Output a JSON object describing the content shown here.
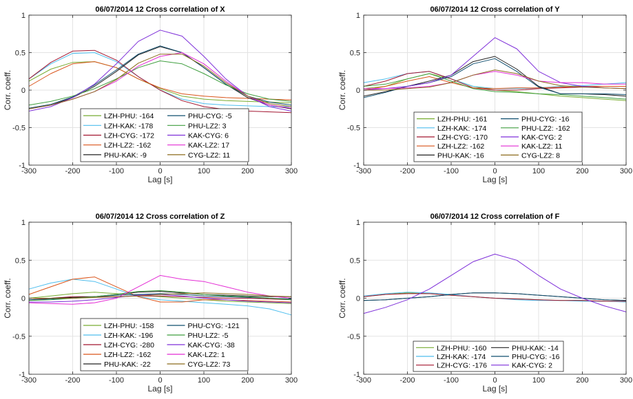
{
  "chart_data": [
    {
      "type": "line",
      "title": "06/07/2014 12 Cross correlation of X",
      "xlabel": "Lag [s]",
      "ylabel": "Corr. coeff.",
      "xlim": [
        -300,
        300
      ],
      "ylim": [
        -1,
        1
      ],
      "xticks": [
        "-300",
        "-200",
        "-100",
        "0",
        "100",
        "200",
        "300"
      ],
      "yticks": [
        "-1",
        "-0.5",
        "0",
        "0.5",
        "1"
      ],
      "grid": true,
      "legend_placement": "bottom-center",
      "legend_columns": 2,
      "x": [
        -300,
        -250,
        -200,
        -150,
        -100,
        -50,
        0,
        50,
        100,
        150,
        200,
        250,
        300
      ],
      "series": [
        {
          "name": "LZH-PHU: -164",
          "color": "#77AC30",
          "values": [
            0.12,
            0.28,
            0.37,
            0.38,
            0.3,
            0.15,
            0.02,
            -0.08,
            -0.12,
            -0.14,
            -0.15,
            -0.16,
            -0.17
          ]
        },
        {
          "name": "LZH-KAK: -178",
          "color": "#4DBEEE",
          "values": [
            0.15,
            0.35,
            0.49,
            0.5,
            0.38,
            0.18,
            0.0,
            -0.12,
            -0.18,
            -0.2,
            -0.21,
            -0.22,
            -0.22
          ]
        },
        {
          "name": "LZH-CYG: -172",
          "color": "#A2142F",
          "values": [
            0.15,
            0.37,
            0.52,
            0.53,
            0.4,
            0.18,
            0.0,
            -0.14,
            -0.22,
            -0.26,
            -0.28,
            -0.29,
            -0.3
          ]
        },
        {
          "name": "LZH-LZ2: -162",
          "color": "#D95319",
          "values": [
            0.05,
            0.22,
            0.35,
            0.38,
            0.3,
            0.15,
            0.03,
            -0.05,
            -0.08,
            -0.1,
            -0.11,
            -0.12,
            -0.13
          ]
        },
        {
          "name": "PHU-KAK: -9",
          "color": "#222222",
          "values": [
            -0.25,
            -0.2,
            -0.1,
            0.05,
            0.25,
            0.47,
            0.58,
            0.5,
            0.3,
            0.08,
            -0.1,
            -0.2,
            -0.25
          ]
        },
        {
          "name": "PHU-CYG: -5",
          "color": "#0E4D6E",
          "values": [
            -0.24,
            -0.19,
            -0.09,
            0.07,
            0.27,
            0.48,
            0.59,
            0.5,
            0.3,
            0.08,
            -0.08,
            -0.16,
            -0.2
          ]
        },
        {
          "name": "PHU-LZ2: 3",
          "color": "#3E9E3E",
          "values": [
            -0.2,
            -0.15,
            -0.08,
            0.02,
            0.15,
            0.3,
            0.39,
            0.35,
            0.22,
            0.07,
            -0.05,
            -0.12,
            -0.15
          ]
        },
        {
          "name": "KAK-CYG: 6",
          "color": "#7E2FD9",
          "values": [
            -0.28,
            -0.22,
            -0.1,
            0.08,
            0.35,
            0.65,
            0.8,
            0.72,
            0.45,
            0.15,
            -0.08,
            -0.22,
            -0.28
          ]
        },
        {
          "name": "KAK-LZ2: 17",
          "color": "#E32BD4",
          "values": [
            -0.25,
            -0.2,
            -0.12,
            -0.02,
            0.12,
            0.32,
            0.45,
            0.5,
            0.35,
            0.12,
            -0.08,
            -0.2,
            -0.24
          ]
        },
        {
          "name": "CYG-LZ2: 11",
          "color": "#8B6A1A",
          "values": [
            -0.25,
            -0.2,
            -0.12,
            -0.02,
            0.14,
            0.36,
            0.48,
            0.48,
            0.32,
            0.1,
            -0.08,
            -0.18,
            -0.22
          ]
        }
      ]
    },
    {
      "type": "line",
      "title": "06/07/2014 12 Cross correlation of Y",
      "xlabel": "Lag [s]",
      "ylabel": "Corr. coeff.",
      "xlim": [
        -300,
        300
      ],
      "ylim": [
        -1,
        1
      ],
      "xticks": [
        "-300",
        "-200",
        "-100",
        "0",
        "100",
        "200",
        "300"
      ],
      "yticks": [
        "-1",
        "-0.5",
        "0",
        "0.5",
        "1"
      ],
      "grid": true,
      "legend_placement": "bottom-center",
      "legend_columns": 2,
      "x": [
        -300,
        -250,
        -200,
        -150,
        -100,
        -50,
        0,
        50,
        100,
        150,
        200,
        250,
        300
      ],
      "series": [
        {
          "name": "LZH-PHU: -161",
          "color": "#77AC30",
          "values": [
            0.02,
            0.05,
            0.15,
            0.22,
            0.15,
            0.05,
            0.0,
            -0.02,
            -0.05,
            -0.08,
            -0.1,
            -0.12,
            -0.14
          ]
        },
        {
          "name": "LZH-KAK: -174",
          "color": "#4DBEEE",
          "values": [
            0.1,
            0.15,
            0.22,
            0.25,
            0.15,
            0.05,
            0.02,
            0.02,
            0.03,
            0.05,
            0.06,
            0.08,
            0.1
          ]
        },
        {
          "name": "LZH-CYG: -170",
          "color": "#A2142F",
          "values": [
            0.05,
            0.12,
            0.22,
            0.25,
            0.15,
            0.03,
            0.0,
            0.0,
            0.02,
            0.03,
            0.04,
            0.05,
            0.05
          ]
        },
        {
          "name": "LZH-LZ2: -162",
          "color": "#D95319",
          "values": [
            0.0,
            0.05,
            0.12,
            0.18,
            0.1,
            0.03,
            0.02,
            0.03,
            0.03,
            0.04,
            0.05,
            0.05,
            0.05
          ]
        },
        {
          "name": "PHU-KAK: -16",
          "color": "#222222",
          "values": [
            -0.08,
            -0.02,
            0.05,
            0.12,
            0.2,
            0.38,
            0.45,
            0.28,
            0.05,
            -0.05,
            -0.05,
            -0.06,
            -0.08
          ]
        },
        {
          "name": "PHU-CYG: -16",
          "color": "#0E4D6E",
          "values": [
            -0.1,
            -0.03,
            0.05,
            0.1,
            0.18,
            0.35,
            0.42,
            0.25,
            0.04,
            -0.05,
            -0.05,
            -0.05,
            -0.06
          ]
        },
        {
          "name": "PHU-LZ2: -162",
          "color": "#3E9E3E",
          "values": [
            0.05,
            0.08,
            0.15,
            0.22,
            0.12,
            0.02,
            -0.02,
            -0.03,
            -0.05,
            -0.06,
            -0.08,
            -0.1,
            -0.12
          ]
        },
        {
          "name": "KAK-CYG: 2",
          "color": "#7E2FD9",
          "values": [
            0.0,
            0.02,
            0.05,
            0.1,
            0.2,
            0.45,
            0.7,
            0.55,
            0.25,
            0.1,
            0.05,
            0.03,
            0.02
          ]
        },
        {
          "name": "KAK-LZ2: 11",
          "color": "#E32BD4",
          "values": [
            0.02,
            0.02,
            0.03,
            0.05,
            0.1,
            0.2,
            0.25,
            0.2,
            0.12,
            0.1,
            0.1,
            0.08,
            0.08
          ]
        },
        {
          "name": "CYG-LZ2: 8",
          "color": "#8B6A1A",
          "values": [
            0.0,
            0.0,
            0.02,
            0.04,
            0.1,
            0.2,
            0.27,
            0.22,
            0.12,
            0.06,
            0.04,
            0.03,
            0.02
          ]
        }
      ]
    },
    {
      "type": "line",
      "title": "06/07/2014 12 Cross correlation of Z",
      "xlabel": "Lag [s]",
      "ylabel": "Corr. coeff.",
      "xlim": [
        -300,
        300
      ],
      "ylim": [
        -1,
        1
      ],
      "xticks": [
        "-300",
        "-200",
        "-100",
        "0",
        "100",
        "200",
        "300"
      ],
      "yticks": [
        "-1",
        "-0.5",
        "0",
        "0.5",
        "1"
      ],
      "grid": true,
      "legend_placement": "bottom-center",
      "legend_columns": 2,
      "x": [
        -300,
        -250,
        -200,
        -150,
        -100,
        -50,
        0,
        50,
        100,
        150,
        200,
        250,
        300
      ],
      "series": [
        {
          "name": "LZH-PHU: -158",
          "color": "#77AC30",
          "values": [
            0.0,
            0.03,
            0.06,
            0.08,
            0.06,
            0.04,
            0.02,
            0.0,
            -0.02,
            -0.04,
            -0.05,
            -0.06,
            -0.07
          ]
        },
        {
          "name": "LZH-KAK: -196",
          "color": "#4DBEEE",
          "values": [
            0.12,
            0.2,
            0.25,
            0.22,
            0.12,
            0.02,
            -0.02,
            -0.04,
            -0.06,
            -0.08,
            -0.1,
            -0.14,
            -0.22
          ]
        },
        {
          "name": "LZH-CYG: -280",
          "color": "#A2142F",
          "values": [
            -0.02,
            0.0,
            0.02,
            0.02,
            0.02,
            0.03,
            0.03,
            0.02,
            0.01,
            0.0,
            0.0,
            -0.01,
            -0.02
          ]
        },
        {
          "name": "LZH-LZ2: -162",
          "color": "#D95319",
          "values": [
            0.05,
            0.15,
            0.25,
            0.28,
            0.15,
            0.02,
            -0.05,
            -0.05,
            -0.02,
            -0.02,
            -0.03,
            -0.04,
            -0.05
          ]
        },
        {
          "name": "PHU-KAK: -22",
          "color": "#222222",
          "values": [
            0.0,
            0.0,
            0.01,
            0.02,
            0.05,
            0.08,
            0.09,
            0.07,
            0.05,
            0.04,
            0.03,
            0.02,
            0.02
          ]
        },
        {
          "name": "PHU-CYG: -121",
          "color": "#0E4D6E",
          "values": [
            -0.02,
            -0.01,
            0.0,
            0.02,
            0.04,
            0.05,
            0.06,
            0.05,
            0.03,
            0.02,
            0.01,
            0.0,
            -0.01
          ]
        },
        {
          "name": "PHU-LZ2: -5",
          "color": "#3E9E3E",
          "values": [
            -0.03,
            -0.02,
            0.0,
            0.02,
            0.05,
            0.09,
            0.1,
            0.08,
            0.05,
            0.03,
            0.02,
            0.0,
            -0.02
          ]
        },
        {
          "name": "KAK-CYG: -38",
          "color": "#7E2FD9",
          "values": [
            -0.05,
            -0.05,
            -0.04,
            -0.02,
            0.01,
            0.04,
            0.05,
            0.03,
            0.0,
            -0.02,
            -0.04,
            -0.05,
            -0.06
          ]
        },
        {
          "name": "KAK-LZ2: 1",
          "color": "#E32BD4",
          "values": [
            -0.06,
            -0.07,
            -0.08,
            -0.06,
            0.0,
            0.15,
            0.3,
            0.25,
            0.22,
            0.15,
            0.08,
            0.03,
            0.0
          ]
        },
        {
          "name": "CYG-LZ2: 73",
          "color": "#8B6A1A",
          "values": [
            0.0,
            0.0,
            0.0,
            0.01,
            0.02,
            0.03,
            0.05,
            0.06,
            0.07,
            0.06,
            0.05,
            0.03,
            0.02
          ]
        }
      ]
    },
    {
      "type": "line",
      "title": "06/07/2014 12 Cross correlation of F",
      "xlabel": "Lag [s]",
      "ylabel": "Corr. coeff.",
      "xlim": [
        -300,
        300
      ],
      "ylim": [
        -1,
        1
      ],
      "xticks": [
        "-300",
        "-200",
        "-100",
        "0",
        "100",
        "200",
        "300"
      ],
      "yticks": [
        "-1",
        "-0.5",
        "0",
        "0.5",
        "1"
      ],
      "grid": true,
      "legend_placement": "bottom-center",
      "legend_columns": 2,
      "x": [
        -300,
        -250,
        -200,
        -150,
        -100,
        -50,
        0,
        50,
        100,
        150,
        200,
        250,
        300
      ],
      "series": [
        {
          "name": "LZH-PHU: -160",
          "color": "#77AC30",
          "values": [
            0.02,
            0.05,
            0.07,
            0.06,
            0.04,
            0.02,
            0.0,
            -0.01,
            -0.02,
            -0.03,
            -0.03,
            -0.04,
            -0.04
          ]
        },
        {
          "name": "LZH-KAK: -174",
          "color": "#4DBEEE",
          "values": [
            0.03,
            0.06,
            0.08,
            0.07,
            0.05,
            0.02,
            0.0,
            -0.02,
            -0.03,
            -0.03,
            -0.04,
            -0.04,
            -0.05
          ]
        },
        {
          "name": "LZH-CYG: -176",
          "color": "#A2142F",
          "values": [
            0.02,
            0.05,
            0.06,
            0.06,
            0.04,
            0.02,
            0.0,
            -0.01,
            -0.02,
            -0.03,
            -0.03,
            -0.04,
            -0.04
          ]
        },
        {
          "name": "PHU-KAK: -14",
          "color": "#222222",
          "values": [
            -0.03,
            -0.02,
            0.0,
            0.02,
            0.05,
            0.07,
            0.07,
            0.06,
            0.04,
            0.02,
            0.0,
            -0.02,
            -0.03
          ]
        },
        {
          "name": "PHU-CYG: -16",
          "color": "#0E4D6E",
          "values": [
            -0.03,
            -0.02,
            0.0,
            0.02,
            0.05,
            0.07,
            0.07,
            0.06,
            0.04,
            0.02,
            0.0,
            -0.02,
            -0.03
          ]
        },
        {
          "name": "KAK-CYG: 2",
          "color": "#7E2FD9",
          "values": [
            -0.2,
            -0.12,
            -0.02,
            0.12,
            0.3,
            0.48,
            0.58,
            0.5,
            0.3,
            0.12,
            0.0,
            -0.1,
            -0.18
          ]
        }
      ]
    }
  ]
}
